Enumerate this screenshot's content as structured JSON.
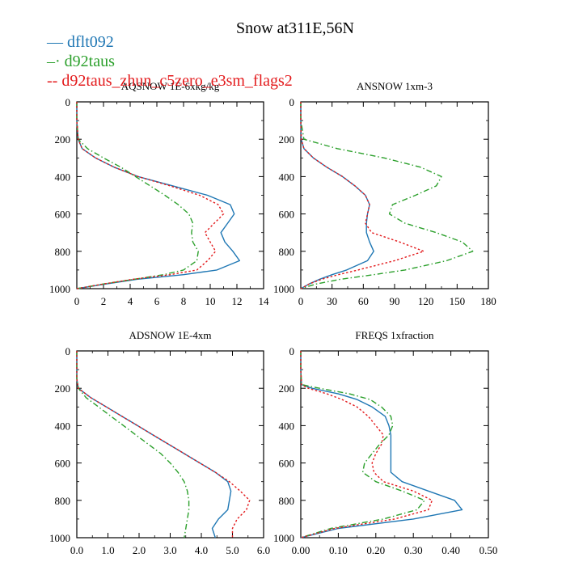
{
  "title": "Snow at311E,56N",
  "legend": [
    {
      "name": "dflt092",
      "color": "#1f77b4",
      "dash": "solid"
    },
    {
      "name": "d92taus",
      "color": "#2ca02c",
      "dash": "dashdot"
    },
    {
      "name": "d92taus_zhun_c5zero_e3sm_flags2",
      "color": "#e31a1c",
      "dash": "dotted"
    }
  ],
  "chart_data": [
    {
      "type": "line",
      "title": "AQSNOW  1E-6xkg/kg",
      "xlim": [
        0,
        14
      ],
      "xticks": [
        0,
        2,
        4,
        6,
        8,
        10,
        12,
        14
      ],
      "xtick_labels": [
        "0",
        "2",
        "4",
        "6",
        "8",
        "10",
        "12",
        "14"
      ],
      "ylim": [
        1000,
        0
      ],
      "yticks": [
        0,
        200,
        400,
        600,
        800,
        1000
      ],
      "ytick_labels": [
        "0",
        "200",
        "400",
        "600",
        "800",
        "1000"
      ],
      "y": [
        0,
        100,
        200,
        250,
        300,
        350,
        400,
        450,
        500,
        550,
        600,
        650,
        700,
        750,
        800,
        850,
        900,
        925,
        950,
        975,
        1000
      ],
      "series": [
        {
          "name": "dflt092",
          "values": [
            0,
            0,
            0.1,
            0.4,
            1.4,
            2.8,
            4.6,
            7.2,
            9.8,
            11.5,
            11.8,
            11.3,
            10.8,
            11.1,
            11.7,
            12.2,
            10.5,
            8.0,
            4.5,
            2.2,
            0
          ]
        },
        {
          "name": "d92taus",
          "values": [
            0,
            0,
            0.1,
            0.8,
            2.0,
            3.3,
            4.4,
            5.5,
            6.6,
            7.6,
            8.4,
            8.7,
            8.6,
            8.7,
            9.1,
            9.0,
            8.0,
            6.5,
            4.3,
            2.0,
            0
          ]
        },
        {
          "name": "d92taus_zhun_c5zero_e3sm_flags2",
          "values": [
            0,
            0,
            0.1,
            0.4,
            1.4,
            2.8,
            4.6,
            7.0,
            9.2,
            10.6,
            11.0,
            10.3,
            9.6,
            10.0,
            10.4,
            9.8,
            9.0,
            7.0,
            4.2,
            2.0,
            0
          ]
        }
      ]
    },
    {
      "type": "line",
      "title": "ANSNOW  1xm-3",
      "xlim": [
        0,
        180
      ],
      "xticks": [
        0,
        30,
        60,
        90,
        120,
        150,
        180
      ],
      "xtick_labels": [
        "0",
        "30",
        "60",
        "90",
        "120",
        "150",
        "180"
      ],
      "ylim": [
        1000,
        0
      ],
      "yticks": [
        0,
        200,
        400,
        600,
        800,
        1000
      ],
      "ytick_labels": [
        "0",
        "200",
        "400",
        "600",
        "800",
        "1000"
      ],
      "y": [
        0,
        100,
        200,
        250,
        300,
        350,
        400,
        450,
        500,
        550,
        600,
        650,
        700,
        750,
        800,
        850,
        900,
        925,
        950,
        975,
        1000
      ],
      "series": [
        {
          "name": "dflt092",
          "values": [
            0,
            0,
            0.5,
            3,
            12,
            25,
            40,
            52,
            62,
            66,
            64,
            63,
            63,
            66,
            70,
            64,
            44,
            30,
            18,
            8,
            0
          ]
        },
        {
          "name": "d92taus",
          "values": [
            0,
            0,
            3,
            35,
            80,
            115,
            135,
            130,
            110,
            88,
            85,
            100,
            130,
            155,
            165,
            140,
            100,
            70,
            38,
            15,
            0
          ]
        },
        {
          "name": "d92taus_zhun_c5zero_e3sm_flags2",
          "values": [
            0,
            0,
            0.5,
            3,
            12,
            25,
            40,
            52,
            62,
            66,
            64,
            62,
            68,
            95,
            118,
            90,
            55,
            36,
            20,
            8,
            0
          ]
        }
      ]
    },
    {
      "type": "line",
      "title": "ADSNOW  1E-4xm",
      "xlim": [
        0,
        6
      ],
      "xticks": [
        0,
        1,
        2,
        3,
        4,
        5,
        6
      ],
      "xtick_labels": [
        "0.0",
        "1.0",
        "2.0",
        "3.0",
        "4.0",
        "5.0",
        "6.0"
      ],
      "ylim": [
        1000,
        0
      ],
      "yticks": [
        0,
        200,
        400,
        600,
        800,
        1000
      ],
      "ytick_labels": [
        "0",
        "200",
        "400",
        "600",
        "800",
        "1000"
      ],
      "y": [
        0,
        100,
        150,
        200,
        250,
        300,
        350,
        400,
        450,
        500,
        550,
        600,
        650,
        700,
        750,
        800,
        850,
        900,
        950,
        1000
      ],
      "series": [
        {
          "name": "dflt092",
          "values": [
            0,
            0,
            0,
            0.05,
            0.45,
            0.95,
            1.45,
            1.95,
            2.45,
            2.95,
            3.45,
            3.95,
            4.45,
            4.85,
            4.95,
            4.9,
            4.85,
            4.55,
            4.35,
            4.45
          ]
        },
        {
          "name": "d92taus",
          "values": [
            0,
            0,
            0,
            0.05,
            0.3,
            0.7,
            1.1,
            1.5,
            1.9,
            2.3,
            2.7,
            3.0,
            3.25,
            3.45,
            3.55,
            3.6,
            3.6,
            3.55,
            3.5,
            3.45
          ]
        },
        {
          "name": "d92taus_zhun_c5zero_e3sm_flags2",
          "values": [
            0,
            0,
            0,
            0.05,
            0.45,
            0.95,
            1.45,
            1.95,
            2.45,
            2.95,
            3.45,
            3.95,
            4.45,
            4.9,
            5.25,
            5.55,
            5.45,
            5.15,
            5.0,
            5.0
          ]
        }
      ]
    },
    {
      "type": "line",
      "title": "FREQS  1xfraction",
      "xlim": [
        0,
        0.5
      ],
      "xticks": [
        0,
        0.1,
        0.2,
        0.3,
        0.4,
        0.5
      ],
      "xtick_labels": [
        "0.00",
        "0.10",
        "0.20",
        "0.30",
        "0.40",
        "0.50"
      ],
      "ylim": [
        1000,
        0
      ],
      "yticks": [
        0,
        200,
        400,
        600,
        800,
        1000
      ],
      "ytick_labels": [
        "0",
        "200",
        "400",
        "600",
        "800",
        "1000"
      ],
      "y": [
        0,
        100,
        180,
        200,
        230,
        260,
        300,
        350,
        400,
        450,
        500,
        550,
        600,
        650,
        700,
        750,
        800,
        850,
        900,
        950,
        1000
      ],
      "series": [
        {
          "name": "dflt092",
          "values": [
            0,
            0,
            0.002,
            0.03,
            0.1,
            0.15,
            0.19,
            0.225,
            0.235,
            0.24,
            0.24,
            0.24,
            0.24,
            0.24,
            0.27,
            0.34,
            0.41,
            0.43,
            0.3,
            0.1,
            0
          ]
        },
        {
          "name": "d92taus",
          "values": [
            0,
            0,
            0.002,
            0.05,
            0.13,
            0.185,
            0.215,
            0.24,
            0.245,
            0.235,
            0.21,
            0.19,
            0.17,
            0.165,
            0.2,
            0.27,
            0.33,
            0.31,
            0.22,
            0.08,
            0
          ]
        },
        {
          "name": "d92taus_zhun_c5zero_e3sm_flags2",
          "values": [
            0,
            0,
            0.002,
            0.02,
            0.07,
            0.11,
            0.15,
            0.18,
            0.2,
            0.22,
            0.215,
            0.2,
            0.19,
            0.195,
            0.22,
            0.3,
            0.35,
            0.34,
            0.25,
            0.09,
            0
          ]
        }
      ]
    }
  ]
}
